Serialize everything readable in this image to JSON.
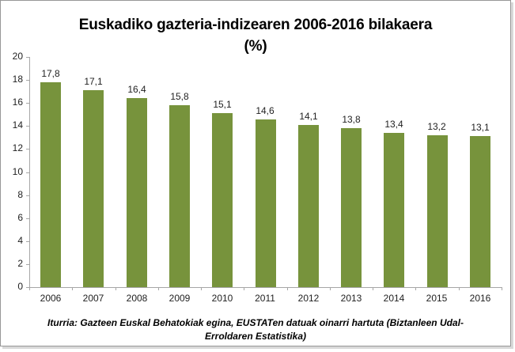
{
  "title": {
    "line1": "Euskadiko gazteria-indizearen 2006-2016 bilakaera",
    "line2": "(%)"
  },
  "source": {
    "line1": "Iturria: Gazteen Euskal Behatokiak egina, EUSTATen datuak oinarri hartuta (Biztanleen Udal-",
    "line2": "Erroldaren Estatistika)"
  },
  "chart_data": {
    "type": "bar",
    "title": "Euskadiko gazteria-indizearen 2006-2016 bilakaera (%)",
    "categories": [
      "2006",
      "2007",
      "2008",
      "2009",
      "2010",
      "2011",
      "2012",
      "2013",
      "2014",
      "2015",
      "2016"
    ],
    "values": [
      17.8,
      17.1,
      16.4,
      15.8,
      15.1,
      14.6,
      14.1,
      13.8,
      13.4,
      13.2,
      13.1
    ],
    "value_labels": [
      "17,8",
      "17,1",
      "16,4",
      "15,8",
      "15,1",
      "14,6",
      "14,1",
      "13,8",
      "13,4",
      "13,2",
      "13,1"
    ],
    "xlabel": "",
    "ylabel": "",
    "ylim": [
      0,
      20
    ],
    "ytick_step": 2,
    "grid": false,
    "legend": "none",
    "bar_color": "#77933C",
    "axis_color": "#A6A6A6",
    "text_color": "#1F1F1F"
  }
}
